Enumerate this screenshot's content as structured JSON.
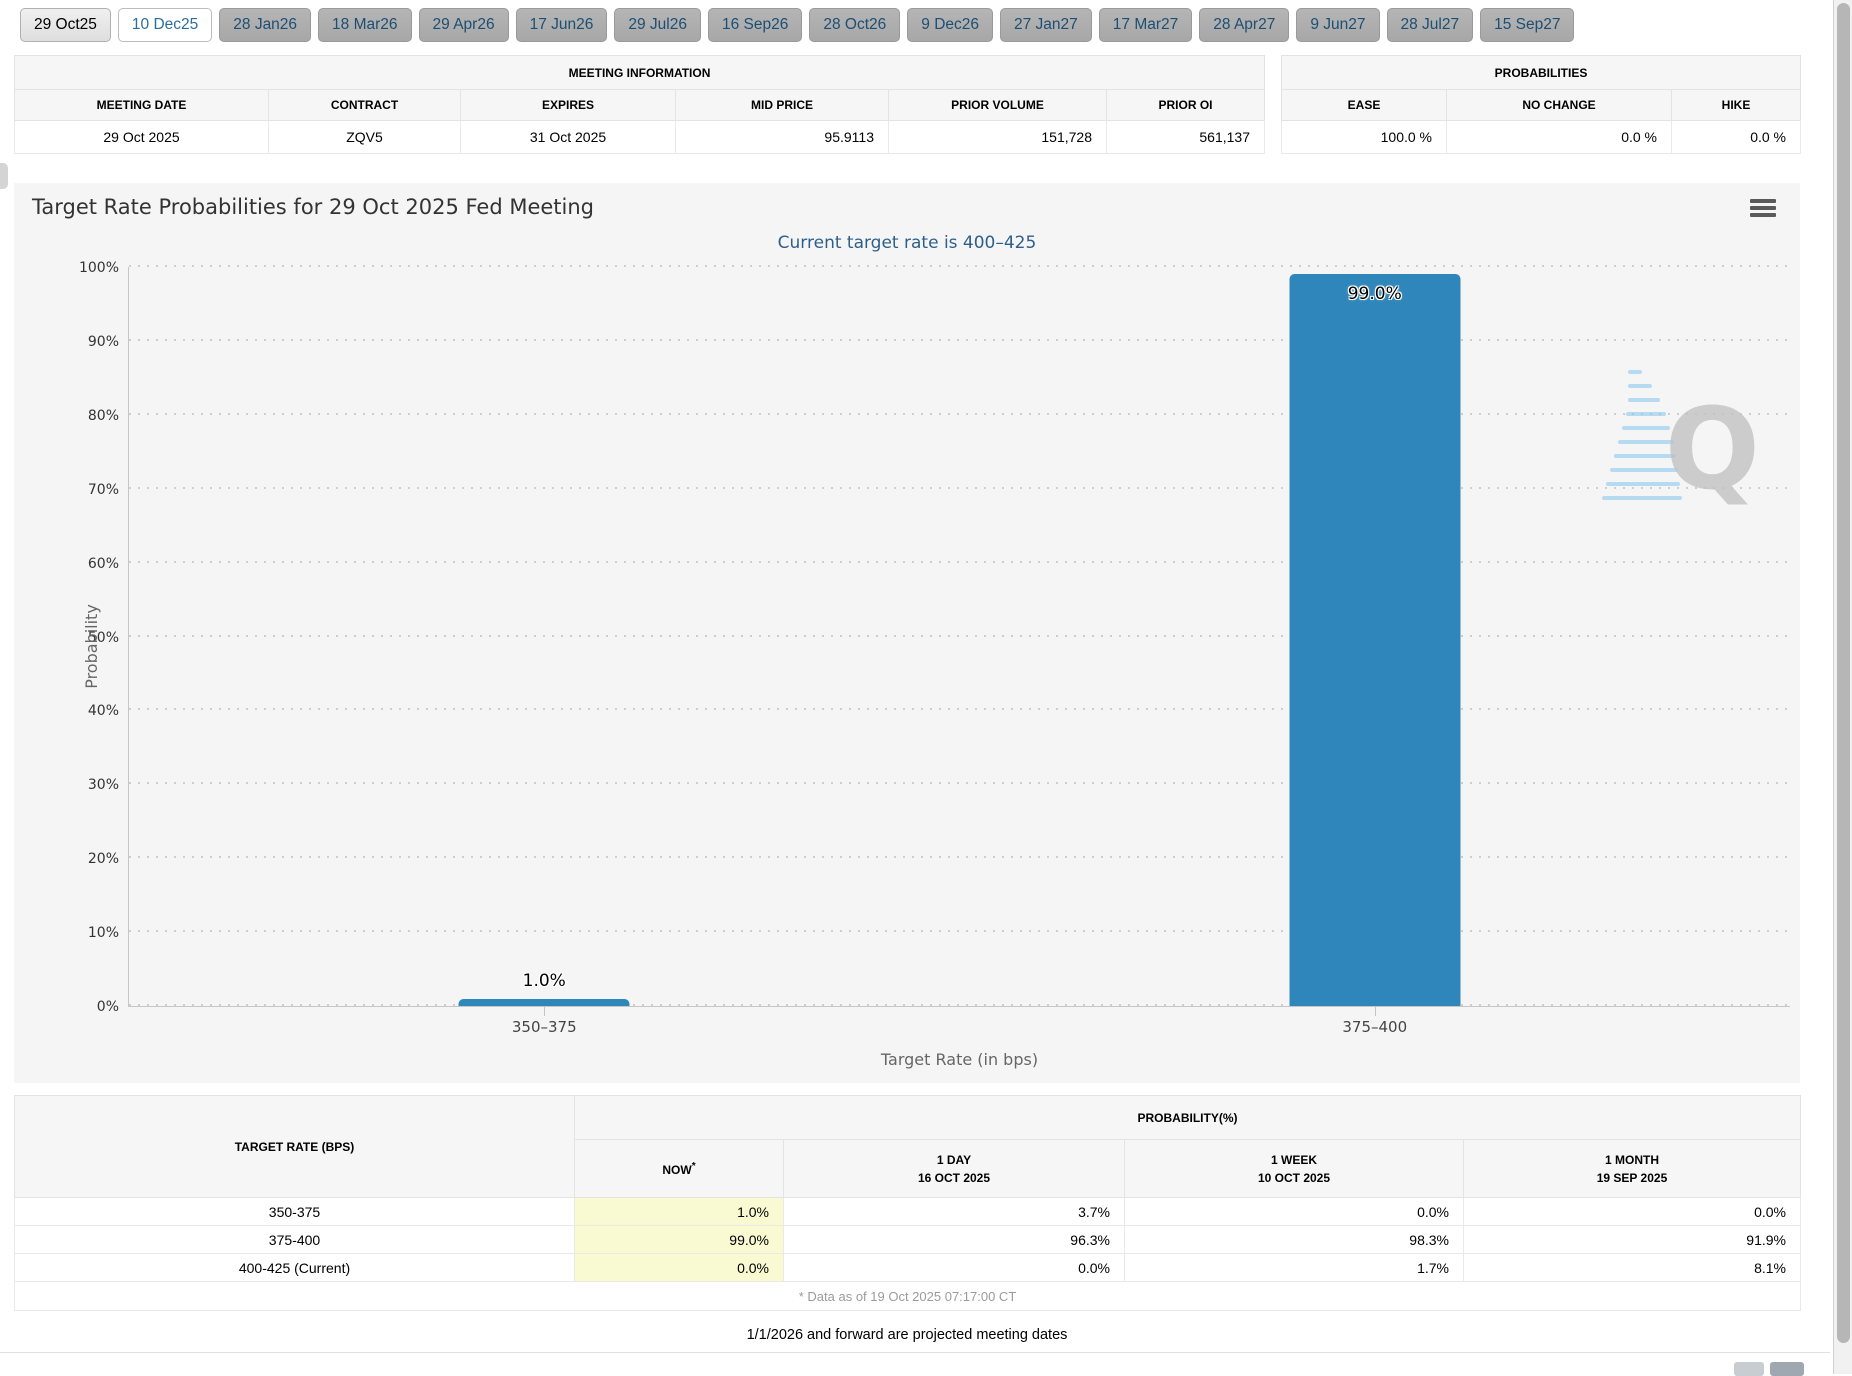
{
  "tabs": [
    {
      "label": "29 Oct25"
    },
    {
      "label": "10 Dec25"
    },
    {
      "label": "28 Jan26"
    },
    {
      "label": "18 Mar26"
    },
    {
      "label": "29 Apr26"
    },
    {
      "label": "17 Jun26"
    },
    {
      "label": "29 Jul26"
    },
    {
      "label": "16 Sep26"
    },
    {
      "label": "28 Oct26"
    },
    {
      "label": "9 Dec26"
    },
    {
      "label": "27 Jan27"
    },
    {
      "label": "17 Mar27"
    },
    {
      "label": "28 Apr27"
    },
    {
      "label": "9 Jun27"
    },
    {
      "label": "28 Jul27"
    },
    {
      "label": "15 Sep27"
    }
  ],
  "meeting_info": {
    "title": "MEETING INFORMATION",
    "headers": {
      "meeting_date": "MEETING DATE",
      "contract": "CONTRACT",
      "expires": "EXPIRES",
      "mid_price": "MID PRICE",
      "prior_volume": "PRIOR VOLUME",
      "prior_oi": "PRIOR OI"
    },
    "values": {
      "meeting_date": "29 Oct 2025",
      "contract": "ZQV5",
      "expires": "31 Oct 2025",
      "mid_price": "95.9113",
      "prior_volume": "151,728",
      "prior_oi": "561,137"
    }
  },
  "probabilities": {
    "title": "PROBABILITIES",
    "headers": {
      "ease": "EASE",
      "no_change": "NO CHANGE",
      "hike": "HIKE"
    },
    "values": {
      "ease": "100.0 %",
      "no_change": "0.0 %",
      "hike": "0.0 %"
    }
  },
  "chart_data": {
    "type": "bar",
    "title": "Target Rate Probabilities for 29 Oct 2025 Fed Meeting",
    "subtitle": "Current target rate is 400–425",
    "categories": [
      "350–375",
      "375–400"
    ],
    "values": [
      1.0,
      99.0
    ],
    "value_labels": [
      "1.0%",
      "99.0%"
    ],
    "xlabel": "Target Rate (in bps)",
    "ylabel": "Probability",
    "ylim": [
      0,
      100
    ],
    "ytick_labels": [
      "0%",
      "10%",
      "20%",
      "30%",
      "40%",
      "50%",
      "60%",
      "70%",
      "80%",
      "90%",
      "100%"
    ],
    "bar_color": "#2e86ba",
    "grid": "dotted horizontal gridlines every 10%",
    "legend": "none"
  },
  "probability_table": {
    "rate_header": "TARGET RATE (BPS)",
    "group_header": "PROBABILITY(%)",
    "now_header": "NOW",
    "now_asterisk": "*",
    "col_headers": [
      {
        "line1": "1 DAY",
        "line2": "16 OCT 2025"
      },
      {
        "line1": "1 WEEK",
        "line2": "10 OCT 2025"
      },
      {
        "line1": "1 MONTH",
        "line2": "19 SEP 2025"
      }
    ],
    "rows": [
      {
        "rate": "350-375",
        "now": "1.0%",
        "one_day": "3.7%",
        "one_week": "0.0%",
        "one_month": "0.0%"
      },
      {
        "rate": "375-400",
        "now": "99.0%",
        "one_day": "96.3%",
        "one_week": "98.3%",
        "one_month": "91.9%"
      },
      {
        "rate": "400-425 (Current)",
        "now": "0.0%",
        "one_day": "0.0%",
        "one_week": "1.7%",
        "one_month": "8.1%"
      }
    ],
    "footnote": "* Data as of 19 Oct 2025 07:17:00 CT"
  },
  "footer_note": "1/1/2026 and forward are projected meeting dates",
  "colors": {
    "bar": "#2e86ba",
    "subtitle_blue": "#2d5f8c",
    "now_highlight": "#fafad2",
    "tab_text_blue": "#1d4e74",
    "panel_bg": "#f5f5f5"
  }
}
